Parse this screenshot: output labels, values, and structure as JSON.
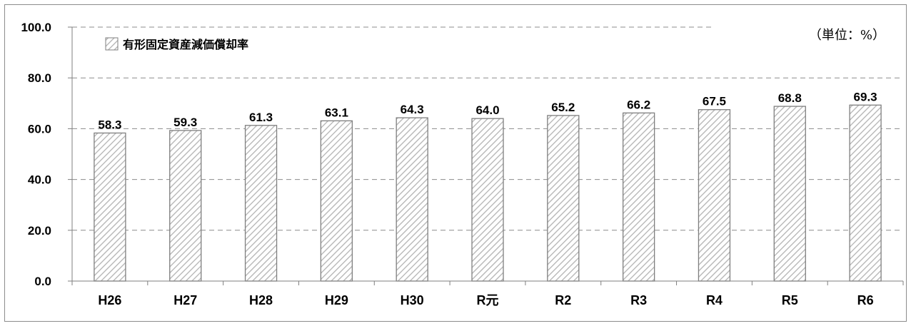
{
  "chart_data": {
    "type": "bar",
    "categories": [
      "H26",
      "H27",
      "H28",
      "H29",
      "H30",
      "R元",
      "R2",
      "R3",
      "R4",
      "R5",
      "R6"
    ],
    "series": [
      {
        "name": "有形固定資産減価償却率",
        "values": [
          58.3,
          59.3,
          61.3,
          63.1,
          64.3,
          64.0,
          65.2,
          66.2,
          67.5,
          68.8,
          69.3
        ]
      }
    ],
    "data_labels": [
      "58.3",
      "59.3",
      "61.3",
      "63.1",
      "64.3",
      "64.0",
      "65.2",
      "66.2",
      "67.5",
      "68.8",
      "69.3"
    ],
    "y_ticks": [
      "0.0",
      "20.0",
      "40.0",
      "60.0",
      "80.0",
      "100.0"
    ],
    "ylim": [
      0,
      100
    ],
    "unit_label": "（単位：%）",
    "legend_position": "top-left",
    "grid": "dashed horizontal",
    "colors": {
      "bar_fill": "#ffffff",
      "bar_hatch": "#b3b3b3",
      "bar_border": "#7f7f7f",
      "grid": "#8c8c8c",
      "axis": "#7f7f7f"
    }
  }
}
